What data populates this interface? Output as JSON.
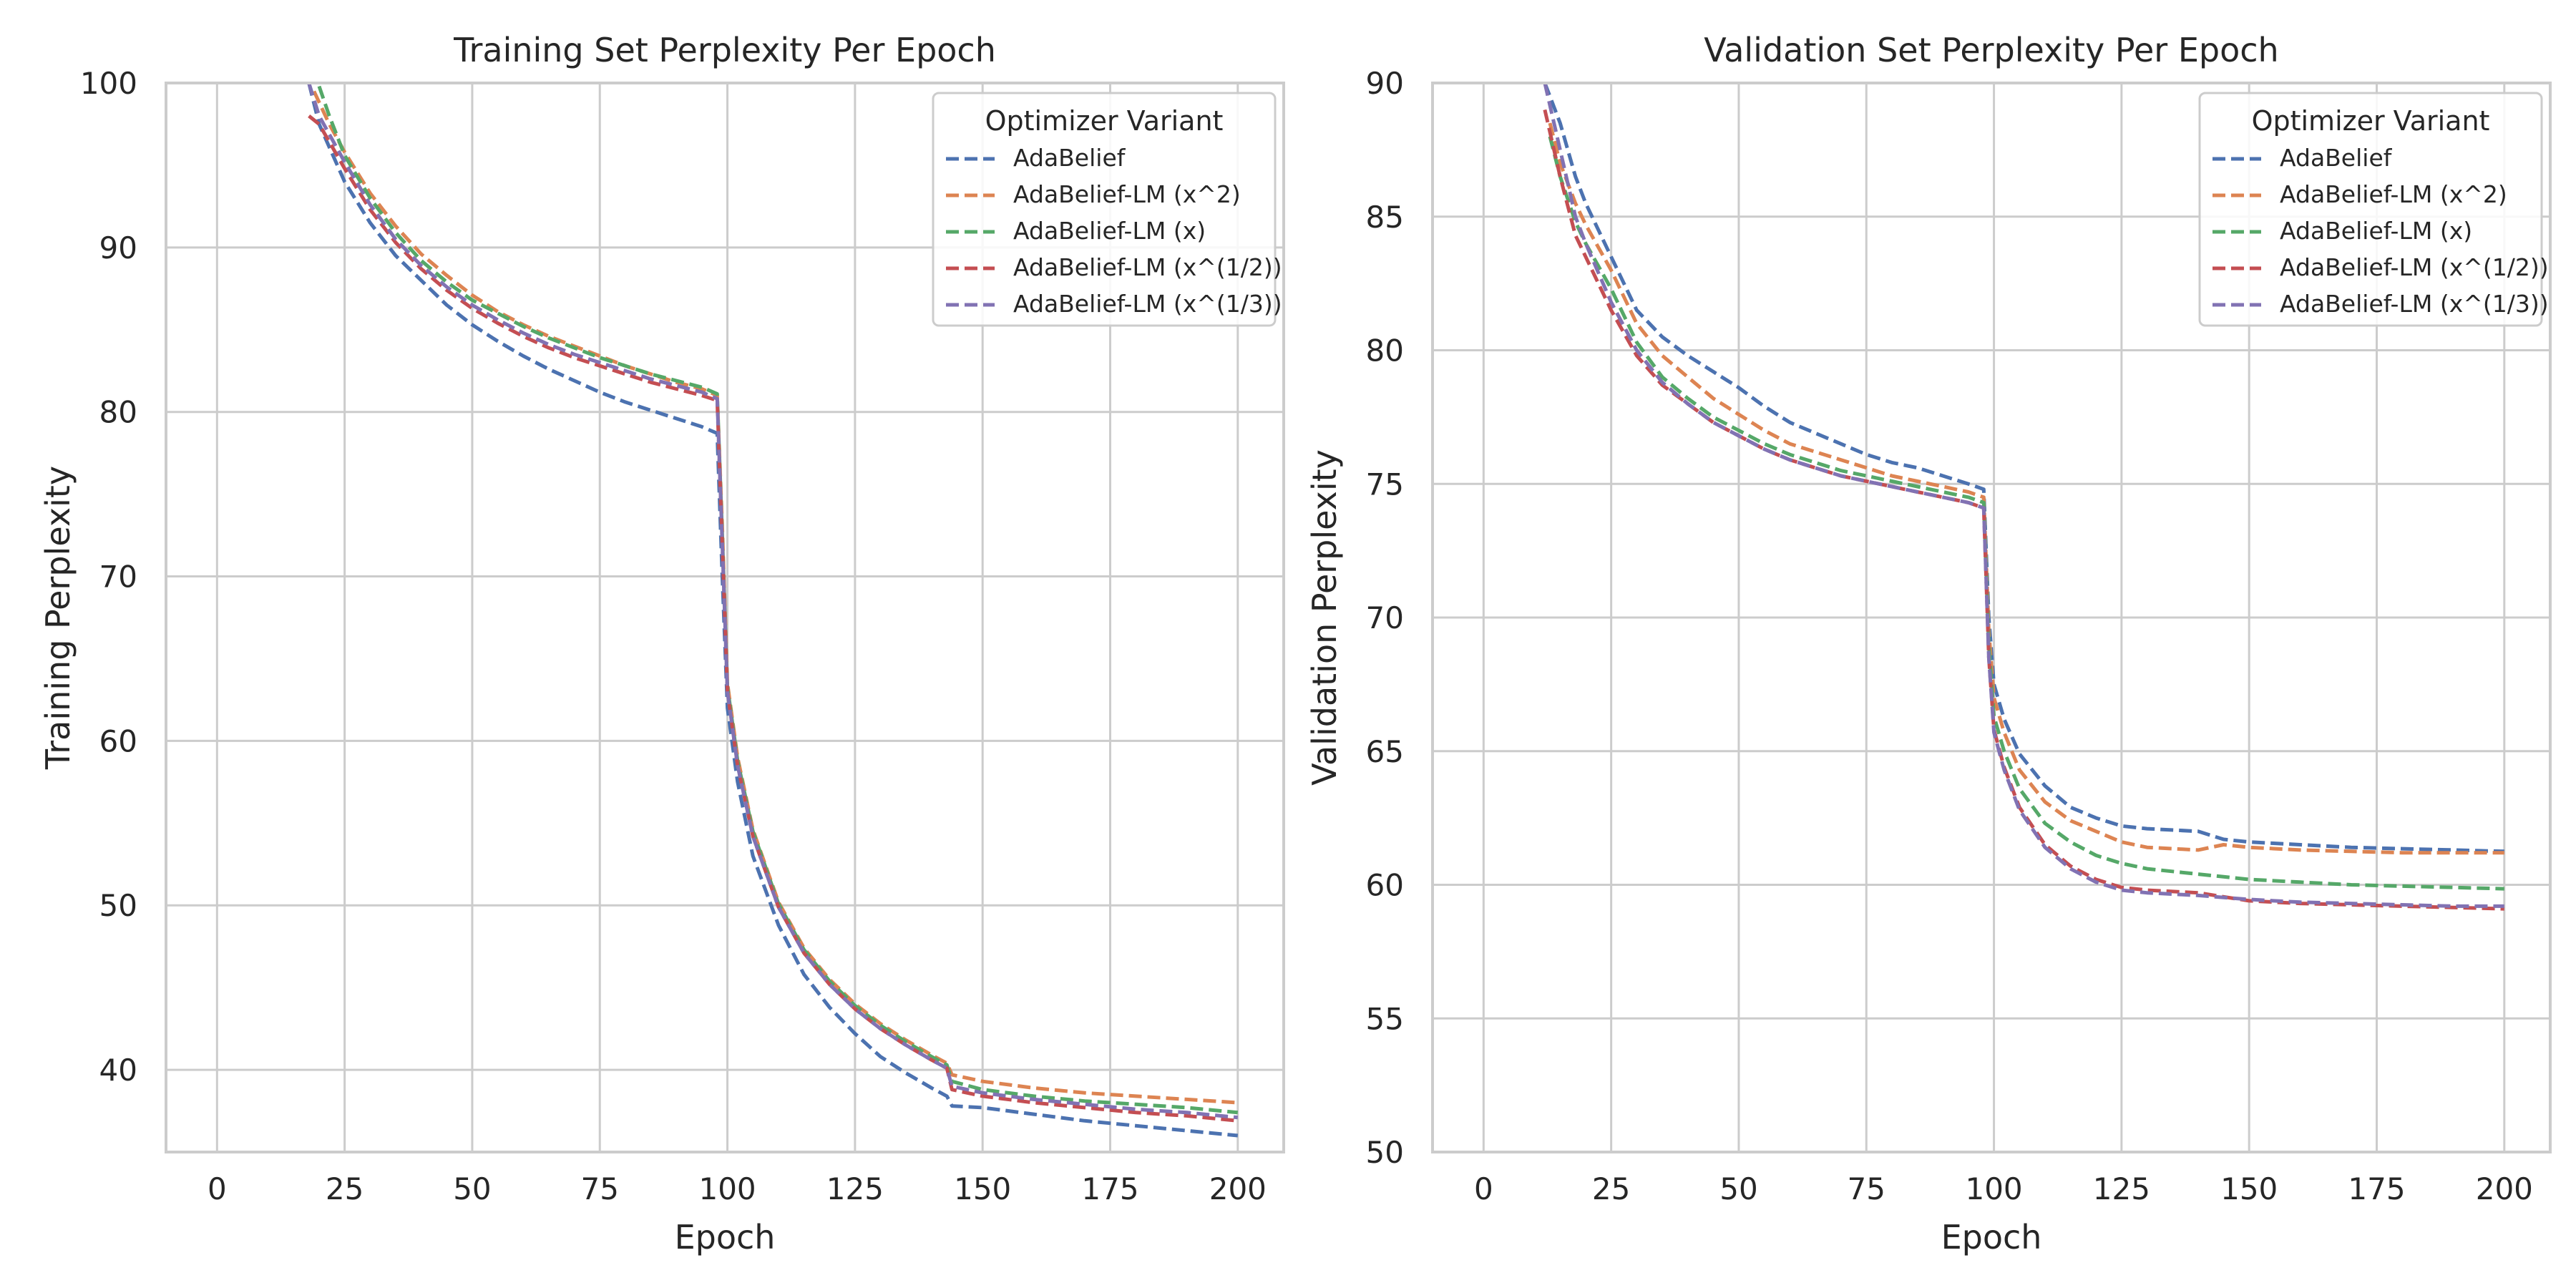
{
  "chart_data": [
    {
      "type": "line",
      "title": "Training Set Perplexity Per Epoch",
      "xlabel": "Epoch",
      "ylabel": "Training Perplexity",
      "xlim": [
        -10,
        209
      ],
      "ylim": [
        35,
        100
      ],
      "xticks": [
        0,
        25,
        50,
        75,
        100,
        125,
        150,
        175,
        200
      ],
      "yticks": [
        40,
        50,
        60,
        70,
        80,
        90,
        100
      ],
      "grid": true,
      "legend": {
        "title": "Optimizer Variant",
        "position": "top-right"
      },
      "series": [
        {
          "name": "AdaBelief",
          "color": "#4c72b0",
          "x": [
            18,
            20,
            25,
            30,
            35,
            40,
            45,
            50,
            55,
            60,
            65,
            70,
            75,
            80,
            85,
            90,
            95,
            98,
            99,
            100,
            102,
            105,
            110,
            115,
            120,
            125,
            130,
            135,
            140,
            143,
            144,
            150,
            160,
            170,
            180,
            190,
            200
          ],
          "y": [
            100,
            97.5,
            94,
            91.5,
            89.5,
            88,
            86.5,
            85.3,
            84.3,
            83.4,
            82.6,
            81.9,
            81.2,
            80.6,
            80.1,
            79.6,
            79.1,
            78.7,
            70,
            62,
            57.5,
            53,
            48.8,
            45.8,
            43.8,
            42.2,
            40.8,
            39.8,
            38.9,
            38.4,
            37.8,
            37.7,
            37.3,
            36.9,
            36.6,
            36.3,
            36.0
          ]
        },
        {
          "name": "AdaBelief-LM (x^2)",
          "color": "#dd8452",
          "x": [
            19,
            22,
            25,
            30,
            35,
            40,
            45,
            50,
            55,
            60,
            65,
            70,
            75,
            80,
            85,
            90,
            95,
            98,
            99,
            100,
            102,
            105,
            110,
            115,
            120,
            125,
            130,
            135,
            140,
            143,
            144,
            150,
            160,
            170,
            180,
            190,
            200
          ],
          "y": [
            99.5,
            97.5,
            95.8,
            93.3,
            91.3,
            89.6,
            88.3,
            87.1,
            86.1,
            85.3,
            84.6,
            84.0,
            83.4,
            82.8,
            82.3,
            81.8,
            81.4,
            81.0,
            73,
            63.5,
            59,
            54.6,
            50.2,
            47.4,
            45.5,
            44.0,
            42.8,
            41.8,
            40.9,
            40.4,
            39.7,
            39.3,
            38.9,
            38.6,
            38.4,
            38.2,
            38.0
          ]
        },
        {
          "name": "AdaBelief-LM (x)",
          "color": "#55a868",
          "x": [
            20,
            22,
            25,
            30,
            35,
            40,
            45,
            50,
            55,
            60,
            65,
            70,
            75,
            80,
            85,
            90,
            95,
            98,
            99,
            100,
            102,
            105,
            110,
            115,
            120,
            125,
            130,
            135,
            140,
            143,
            144,
            150,
            160,
            170,
            180,
            190,
            200
          ],
          "y": [
            99.8,
            98.0,
            95.6,
            93.0,
            90.9,
            89.2,
            87.9,
            86.8,
            86.0,
            85.2,
            84.5,
            83.9,
            83.3,
            82.8,
            82.3,
            81.9,
            81.5,
            81.1,
            72.5,
            63.3,
            58.8,
            54.5,
            50.1,
            47.3,
            45.4,
            43.9,
            42.7,
            41.7,
            40.8,
            40.3,
            39.3,
            38.8,
            38.4,
            38.1,
            37.9,
            37.7,
            37.4
          ]
        },
        {
          "name": "AdaBelief-LM (x^(1/2))",
          "color": "#c44e52",
          "x": [
            18,
            20,
            25,
            30,
            35,
            40,
            45,
            50,
            55,
            60,
            65,
            70,
            75,
            80,
            85,
            90,
            95,
            98,
            99,
            100,
            102,
            105,
            110,
            115,
            120,
            125,
            130,
            135,
            140,
            143,
            144,
            150,
            160,
            170,
            180,
            190,
            200
          ],
          "y": [
            98.0,
            97.5,
            94.8,
            92.3,
            90.3,
            88.7,
            87.4,
            86.3,
            85.4,
            84.6,
            83.9,
            83.3,
            82.8,
            82.3,
            81.8,
            81.4,
            81.0,
            80.7,
            72,
            63,
            58.5,
            54.2,
            49.9,
            47.1,
            45.2,
            43.7,
            42.5,
            41.5,
            40.6,
            40.1,
            38.8,
            38.4,
            38.0,
            37.7,
            37.4,
            37.2,
            36.9
          ]
        },
        {
          "name": "AdaBelief-LM (x^(1/3))",
          "color": "#8172b3",
          "x": [
            18,
            20,
            25,
            30,
            35,
            40,
            45,
            50,
            55,
            60,
            65,
            70,
            75,
            80,
            85,
            90,
            95,
            98,
            99,
            100,
            102,
            105,
            110,
            115,
            120,
            125,
            130,
            135,
            140,
            143,
            144,
            150,
            160,
            170,
            180,
            190,
            200
          ],
          "y": [
            100,
            98.0,
            95.2,
            92.6,
            90.5,
            88.9,
            87.6,
            86.5,
            85.6,
            84.8,
            84.1,
            83.5,
            83.0,
            82.5,
            82.0,
            81.6,
            81.2,
            80.8,
            72,
            63,
            58.5,
            54.2,
            49.9,
            47.1,
            45.2,
            43.7,
            42.5,
            41.5,
            40.6,
            40.1,
            39.0,
            38.6,
            38.2,
            37.9,
            37.6,
            37.4,
            37.1
          ]
        }
      ]
    },
    {
      "type": "line",
      "title": "Validation Set Perplexity Per Epoch",
      "xlabel": "Epoch",
      "ylabel": "Validation Perplexity",
      "xlim": [
        -10,
        209
      ],
      "ylim": [
        50,
        90
      ],
      "xticks": [
        0,
        25,
        50,
        75,
        100,
        125,
        150,
        175,
        200
      ],
      "yticks": [
        50,
        55,
        60,
        65,
        70,
        75,
        80,
        85,
        90
      ],
      "grid": true,
      "legend": {
        "title": "Optimizer Variant",
        "position": "top-right"
      },
      "series": [
        {
          "name": "AdaBelief",
          "color": "#4c72b0",
          "x": [
            12,
            15,
            18,
            20,
            25,
            30,
            35,
            40,
            45,
            50,
            55,
            60,
            65,
            70,
            75,
            80,
            85,
            90,
            95,
            98,
            99,
            100,
            102,
            105,
            110,
            115,
            120,
            125,
            130,
            140,
            145,
            150,
            160,
            170,
            180,
            190,
            200
          ],
          "y": [
            90,
            88.5,
            86.5,
            85.5,
            83.5,
            81.5,
            80.5,
            79.8,
            79.2,
            78.6,
            77.9,
            77.3,
            76.9,
            76.5,
            76.1,
            75.8,
            75.6,
            75.3,
            75.0,
            74.8,
            70,
            67.5,
            66.2,
            64.9,
            63.7,
            62.9,
            62.5,
            62.2,
            62.1,
            62.0,
            61.7,
            61.6,
            61.5,
            61.4,
            61.35,
            61.3,
            61.25
          ]
        },
        {
          "name": "AdaBelief-LM (x^2)",
          "color": "#dd8452",
          "x": [
            13,
            15,
            18,
            20,
            25,
            30,
            35,
            40,
            45,
            50,
            55,
            60,
            65,
            70,
            75,
            80,
            85,
            90,
            95,
            98,
            99,
            100,
            102,
            105,
            110,
            115,
            120,
            125,
            130,
            140,
            145,
            150,
            160,
            170,
            180,
            190,
            200
          ],
          "y": [
            88.5,
            87.0,
            85.5,
            84.7,
            83.0,
            81.0,
            79.8,
            79.0,
            78.2,
            77.6,
            77.0,
            76.5,
            76.2,
            75.9,
            75.6,
            75.3,
            75.1,
            74.9,
            74.7,
            74.5,
            69.5,
            67.0,
            65.7,
            64.3,
            63.1,
            62.4,
            62.0,
            61.6,
            61.4,
            61.3,
            61.5,
            61.4,
            61.3,
            61.25,
            61.2,
            61.2,
            61.2
          ]
        },
        {
          "name": "AdaBelief-LM (x)",
          "color": "#55a868",
          "x": [
            13,
            15,
            18,
            20,
            25,
            30,
            35,
            40,
            45,
            50,
            55,
            60,
            65,
            70,
            75,
            80,
            85,
            90,
            95,
            98,
            99,
            100,
            102,
            105,
            110,
            115,
            120,
            125,
            130,
            140,
            150,
            160,
            170,
            180,
            190,
            200
          ],
          "y": [
            88.0,
            86.5,
            84.8,
            84.0,
            82.3,
            80.3,
            79.0,
            78.2,
            77.5,
            77.0,
            76.5,
            76.1,
            75.8,
            75.5,
            75.3,
            75.1,
            74.9,
            74.7,
            74.5,
            74.3,
            69,
            66.3,
            65.0,
            63.6,
            62.3,
            61.6,
            61.1,
            60.8,
            60.6,
            60.4,
            60.2,
            60.1,
            60.0,
            59.95,
            59.9,
            59.85
          ]
        },
        {
          "name": "AdaBelief-LM (x^(1/2))",
          "color": "#c44e52",
          "x": [
            12,
            15,
            18,
            20,
            25,
            30,
            35,
            40,
            45,
            50,
            55,
            60,
            65,
            70,
            75,
            80,
            85,
            90,
            95,
            98,
            99,
            100,
            102,
            105,
            110,
            115,
            120,
            125,
            130,
            140,
            150,
            160,
            170,
            180,
            190,
            200
          ],
          "y": [
            89.0,
            86.5,
            84.3,
            83.5,
            81.5,
            79.8,
            78.7,
            78.0,
            77.3,
            76.8,
            76.3,
            75.9,
            75.6,
            75.3,
            75.1,
            74.9,
            74.7,
            74.5,
            74.3,
            74.1,
            68.5,
            65.8,
            64.4,
            62.9,
            61.5,
            60.7,
            60.2,
            59.9,
            59.8,
            59.7,
            59.4,
            59.3,
            59.25,
            59.2,
            59.15,
            59.1
          ]
        },
        {
          "name": "AdaBelief-LM (x^(1/3))",
          "color": "#8172b3",
          "x": [
            12,
            15,
            18,
            20,
            25,
            30,
            35,
            40,
            45,
            50,
            55,
            60,
            65,
            70,
            75,
            80,
            85,
            90,
            95,
            98,
            99,
            100,
            102,
            105,
            110,
            115,
            120,
            125,
            130,
            140,
            150,
            160,
            170,
            180,
            190,
            200
          ],
          "y": [
            90,
            87.5,
            85.0,
            84.0,
            81.8,
            80.0,
            78.8,
            78.0,
            77.3,
            76.8,
            76.3,
            75.9,
            75.6,
            75.3,
            75.1,
            74.9,
            74.7,
            74.5,
            74.3,
            74.1,
            68.5,
            65.7,
            64.3,
            62.8,
            61.4,
            60.6,
            60.1,
            59.8,
            59.7,
            59.6,
            59.45,
            59.35,
            59.3,
            59.25,
            59.2,
            59.2
          ]
        }
      ]
    }
  ]
}
